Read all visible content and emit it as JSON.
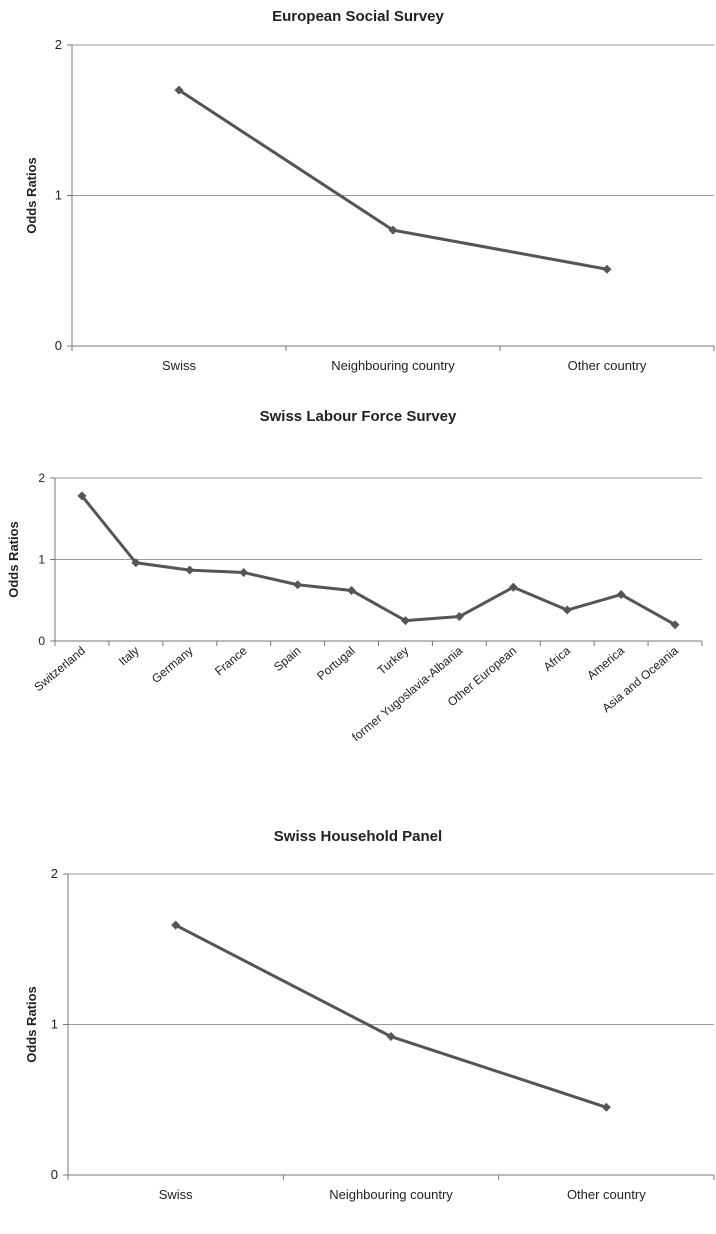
{
  "chart_data": [
    {
      "type": "line",
      "title": "European Social Survey",
      "xlabel": "",
      "ylabel": "Odds Ratios",
      "categories": [
        "Swiss",
        "Neighbouring country",
        "Other country"
      ],
      "values": [
        1.7,
        0.77,
        0.51
      ],
      "ylim": [
        0,
        2
      ],
      "yticks": [
        "0",
        "1",
        "2"
      ],
      "grid": true,
      "color": "#555555"
    },
    {
      "type": "line",
      "title": "Swiss Labour Force Survey",
      "xlabel": "",
      "ylabel": "Odds Ratios",
      "categories": [
        "Switzerland",
        "Italy",
        "Germany",
        "France",
        "Spain",
        "Portugal",
        "Turkey",
        "former Yugoslavia-Albania",
        "Other European",
        "Africa",
        "America",
        "Asia and Oceania"
      ],
      "values": [
        1.78,
        0.96,
        0.87,
        0.84,
        0.69,
        0.62,
        0.25,
        0.3,
        0.66,
        0.38,
        0.57,
        0.2
      ],
      "ylim": [
        0,
        2
      ],
      "yticks": [
        "0",
        "1",
        "2"
      ],
      "grid": true,
      "color": "#555555"
    },
    {
      "type": "line",
      "title": "Swiss Household Panel",
      "xlabel": "",
      "ylabel": "Odds Ratios",
      "categories": [
        "Swiss",
        "Neighbouring country",
        "Other country"
      ],
      "values": [
        1.66,
        0.92,
        0.45
      ],
      "ylim": [
        0,
        2
      ],
      "yticks": [
        "0",
        "1",
        "2"
      ],
      "grid": true,
      "color": "#555555"
    }
  ]
}
